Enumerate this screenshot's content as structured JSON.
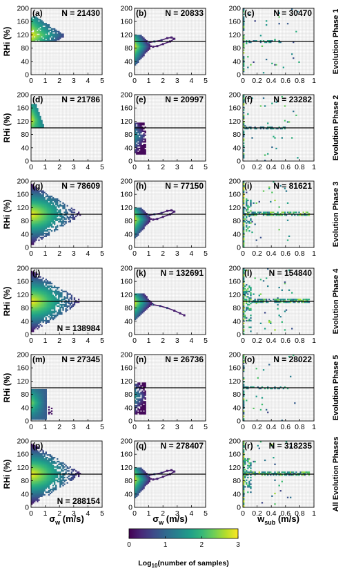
{
  "chart_data": {
    "type": "heatmap",
    "columns": [
      {
        "id": "sigma_w_left",
        "xlabel": "σw (m/s)",
        "xlabel_main": "σ",
        "xlabel_sub": "w",
        "xlabel_unit": " (m/s)",
        "xlim": [
          0,
          5
        ],
        "xticks": [
          "0",
          "1",
          "2",
          "3",
          "4",
          "5"
        ]
      },
      {
        "id": "sigma_w_mid",
        "xlabel": "σw (m/s)",
        "xlabel_main": "σ",
        "xlabel_sub": "w",
        "xlabel_unit": " (m/s)",
        "xlim": [
          0,
          5
        ],
        "xticks": [
          "0",
          "1",
          "2",
          "3",
          "4",
          "5"
        ]
      },
      {
        "id": "w_sub",
        "xlabel": "wsub (m/s)",
        "xlabel_main": "w",
        "xlabel_sub": "sub",
        "xlabel_unit": " (m/s)",
        "xlim": [
          0,
          1
        ],
        "xticks": [
          "0",
          "0.2",
          "0.4",
          "0.6",
          "0.8",
          "1"
        ]
      }
    ],
    "ylabel": "RHi (%)",
    "ylim": [
      0,
      200
    ],
    "yticks": [
      "0",
      "40",
      "80",
      "120",
      "160",
      "200"
    ],
    "reference_line_y": 100,
    "grid": true,
    "rows": [
      {
        "label": "Evolution Phase 1",
        "panels": [
          {
            "letter": "(a)",
            "n": "N = 21430",
            "n_pos": "top-right",
            "pattern": "fan_small"
          },
          {
            "letter": "(b)",
            "n": "N = 20833",
            "n_pos": "top-right",
            "pattern": "mid_tail"
          },
          {
            "letter": "(c)",
            "n": "N = 30470",
            "n_pos": "top-right",
            "pattern": "wsub_sparse"
          }
        ]
      },
      {
        "label": "Evolution Phase 2",
        "panels": [
          {
            "letter": "(d)",
            "n": "N = 21786",
            "n_pos": "top-right",
            "pattern": "wedge"
          },
          {
            "letter": "(e)",
            "n": "N = 20997",
            "n_pos": "top-right",
            "pattern": "mid_narrow"
          },
          {
            "letter": "(f)",
            "n": "N = 23282",
            "n_pos": "top-right",
            "pattern": "wsub_sparse"
          }
        ]
      },
      {
        "label": "Evolution Phase 3",
        "panels": [
          {
            "letter": "(g)",
            "n": "N = 78609",
            "n_pos": "top-right",
            "pattern": "fan_big"
          },
          {
            "letter": "(h)",
            "n": "N = 77150",
            "n_pos": "top-right",
            "pattern": "mid_tail"
          },
          {
            "letter": "(i)",
            "n": "N = 81621",
            "n_pos": "top-right",
            "pattern": "wsub_dense"
          }
        ]
      },
      {
        "label": "Evolution Phase 4",
        "panels": [
          {
            "letter": "(j)",
            "n": "N = 138984",
            "n_pos": "bottom-right",
            "pattern": "fan_big"
          },
          {
            "letter": "(k)",
            "n": "N = 132691",
            "n_pos": "top-right",
            "pattern": "mid_curve"
          },
          {
            "letter": "(l)",
            "n": "N = 154840",
            "n_pos": "top-right",
            "pattern": "wsub_dense"
          }
        ]
      },
      {
        "label": "Evolution Phase 5",
        "panels": [
          {
            "letter": "(m)",
            "n": "N = 27345",
            "n_pos": "top-right",
            "pattern": "block"
          },
          {
            "letter": "(n)",
            "n": "N = 26736",
            "n_pos": "top-right",
            "pattern": "mid_narrow"
          },
          {
            "letter": "(o)",
            "n": "N = 28022",
            "n_pos": "top-right",
            "pattern": "wsub_sparse"
          }
        ]
      },
      {
        "label": "All Evolution Phases",
        "panels": [
          {
            "letter": "(p)",
            "n": "N = 288154",
            "n_pos": "bottom-right",
            "pattern": "fan_big"
          },
          {
            "letter": "(q)",
            "n": "N = 278407",
            "n_pos": "top-right",
            "pattern": "mid_tail"
          },
          {
            "letter": "(r)",
            "n": "N = 318235",
            "n_pos": "top-right",
            "pattern": "wsub_dense"
          }
        ]
      }
    ],
    "colorbar": {
      "label": "Log10(number of samples)",
      "label_main": "Log",
      "label_sub": "10",
      "label_rest": "(number of samples)",
      "ticks": [
        "0",
        "1",
        "2",
        "3"
      ],
      "range": [
        0,
        3
      ],
      "colormap": "viridis"
    }
  },
  "colors": {
    "line": "#000000",
    "grid": "#d8d8d8",
    "viridis": [
      "#440154",
      "#482878",
      "#3e4989",
      "#31688e",
      "#26828e",
      "#1f9e89",
      "#35b779",
      "#6ece58",
      "#b5de2b",
      "#fde725"
    ]
  }
}
